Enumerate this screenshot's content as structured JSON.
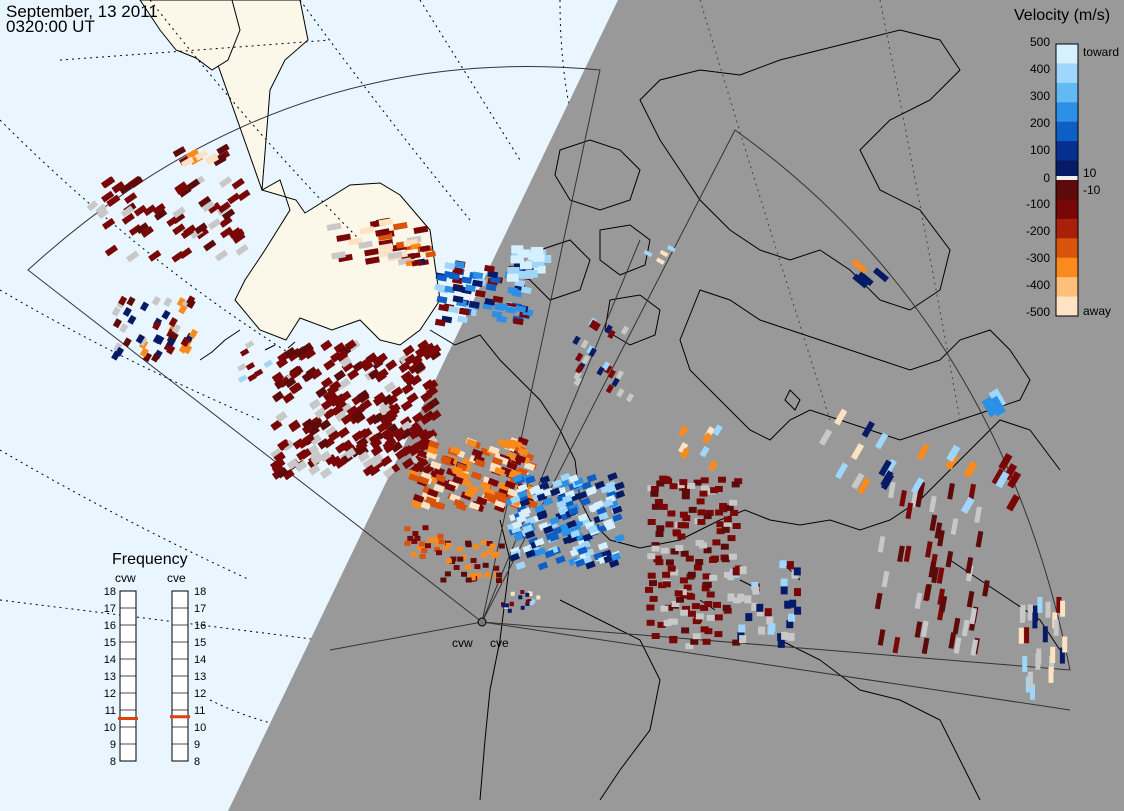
{
  "header": {
    "date": "September, 13 2011",
    "time": "0320:00 UT"
  },
  "colorbar": {
    "title": "Velocity (m/s)",
    "toward_label": "toward",
    "away_label": "away",
    "ticks": [
      "500",
      "400",
      "300",
      "200",
      "100",
      "10",
      "0",
      "-10",
      "-100",
      "-200",
      "-300",
      "-400",
      "-500"
    ],
    "colors": [
      "#d6f0ff",
      "#9fd6fb",
      "#62b9f4",
      "#2b90e6",
      "#0d5fc6",
      "#06308f",
      "#071a66",
      "#5c0a0a",
      "#7a0707",
      "#a8200a",
      "#d9530c",
      "#fb8a1c",
      "#fdc07a",
      "#fde3c3"
    ]
  },
  "radars": {
    "west_label": "cvw",
    "east_label": "cve"
  },
  "frequency": {
    "title": "Frequency",
    "west_label": "cvw",
    "east_label": "cve",
    "ticks": [
      "18",
      "17",
      "16",
      "15",
      "14",
      "13",
      "12",
      "11",
      "10",
      "9",
      "8"
    ],
    "west_mhz": 10.5,
    "east_mhz": 10.6,
    "marker_color": "#e04010",
    "range": [
      8,
      18
    ]
  },
  "map_colors": {
    "night": "#999999",
    "ocean_day": "#eaf6ff",
    "land_day": "#fbf8ea"
  }
}
